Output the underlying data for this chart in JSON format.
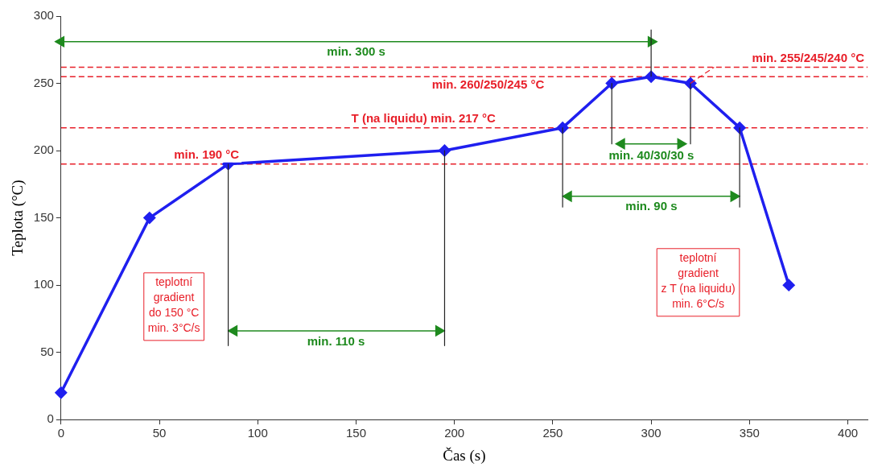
{
  "chart_data": {
    "type": "line",
    "xlabel": "Čas (s)",
    "ylabel": "Teplota (°C)",
    "x": [
      0,
      45,
      85,
      195,
      255,
      280,
      300,
      320,
      345,
      370
    ],
    "series": [
      {
        "color": "#1f1fef",
        "marker": "diamond",
        "values": [
          20,
          150,
          190,
          200,
          217,
          250,
          255,
          250,
          217,
          100
        ]
      },
      {
        "color": "#1e8a1e",
        "marker": "triangle",
        "x": [
          0,
          300
        ],
        "values": [
          281,
          281
        ]
      },
      {
        "color": "#1e8a1e",
        "marker": "triangle",
        "x": [
          88,
          192
        ],
        "values": [
          66,
          66
        ]
      },
      {
        "color": "#1e8a1e",
        "marker": "triangle",
        "x": [
          258,
          342
        ],
        "values": [
          166,
          166
        ]
      },
      {
        "color": "#1e8a1e",
        "marker": "triangle",
        "x": [
          285,
          315
        ],
        "values": [
          205,
          205
        ]
      },
      {
        "color": "#222222",
        "marker": "none",
        "x": [
          85,
          85
        ],
        "values": [
          190,
          55
        ]
      },
      {
        "color": "#222222",
        "marker": "none",
        "x": [
          195,
          195
        ],
        "values": [
          200,
          55
        ]
      },
      {
        "color": "#222222",
        "marker": "none",
        "x": [
          255,
          255
        ],
        "values": [
          217,
          158
        ]
      },
      {
        "color": "#222222",
        "marker": "none",
        "x": [
          345,
          345
        ],
        "values": [
          217,
          158
        ]
      },
      {
        "color": "#222222",
        "marker": "none",
        "x": [
          280,
          280
        ],
        "values": [
          250,
          205
        ]
      },
      {
        "color": "#222222",
        "marker": "none",
        "x": [
          320,
          320
        ],
        "values": [
          250,
          205
        ]
      },
      {
        "color": "#222222",
        "marker": "none",
        "x": [
          300,
          300
        ],
        "values": [
          255,
          290
        ]
      },
      {
        "color": "#e8202a",
        "marker": "none",
        "line_style": "dashed",
        "x": [
          320,
          332
        ],
        "values": [
          250,
          262
        ]
      }
    ],
    "xlim": [
      0,
      410
    ],
    "xticks": [
      0,
      50,
      100,
      150,
      200,
      250,
      300,
      350,
      400
    ],
    "ylim": [
      0,
      300
    ],
    "yticks": [
      0,
      50,
      100,
      150,
      200,
      250,
      300
    ],
    "grid": false,
    "legend": false,
    "line_style": "solid",
    "ref_lines": [
      {
        "axis": "y",
        "value": 190,
        "label": "min. 190 °C",
        "color": "#e8202a",
        "line_style": "dashed"
      },
      {
        "axis": "y",
        "value": 217,
        "label": "T (na liquidu) min. 217 °C",
        "color": "#e8202a",
        "line_style": "dashed"
      },
      {
        "axis": "y",
        "value": 255,
        "label": "min. 260/250/245 °C",
        "color": "#e8202a",
        "line_style": "dashed"
      },
      {
        "axis": "y",
        "value": 262,
        "label": "min. 255/245/240 °C",
        "color": "#e8202a",
        "line_style": "dashed"
      }
    ],
    "annotations": [
      "min. 300 s",
      "min. 110 s",
      "min. 90 s",
      "min. 40/30/30 s",
      "teplotní\ngradient\ndo 150 °C\nmin. 3°C/s",
      "teplotní\ngradient\nz T (na liquidu)\nmin. 6°C/s"
    ]
  }
}
